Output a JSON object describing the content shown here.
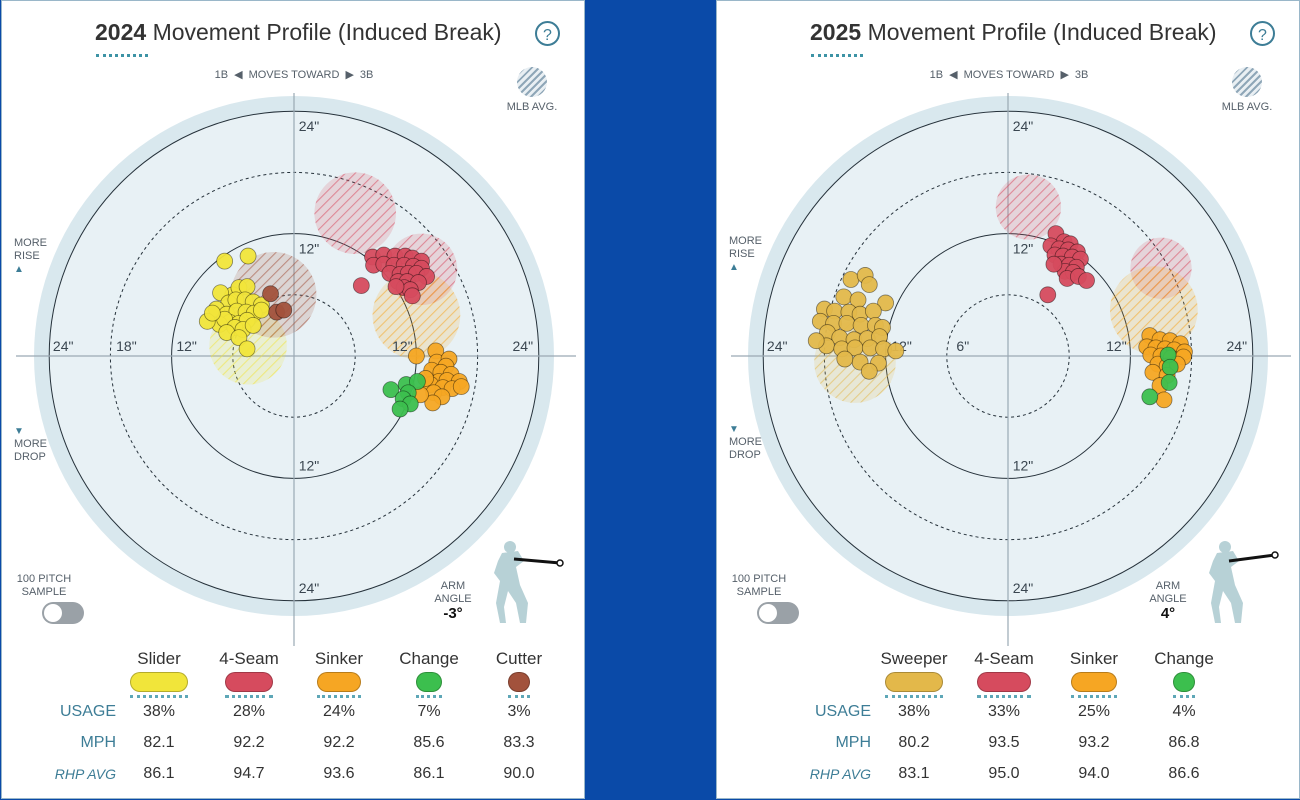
{
  "panels": [
    {
      "year": "2024",
      "title_suffix": "Movement Profile (Induced Break)",
      "help": "?",
      "direction": {
        "left": "1B",
        "middle": "MOVES TOWARD",
        "right": "3B"
      },
      "mlb_avg_label": "MLB AVG.",
      "more_rise": [
        "MORE",
        "RISE"
      ],
      "more_drop": [
        "MORE",
        "DROP"
      ],
      "sample_label": [
        "100 PITCH",
        "SAMPLE"
      ],
      "arm_angle_label": [
        "ARM",
        "ANGLE"
      ],
      "arm_angle_value": "-3°",
      "pitches": [
        "Slider",
        "4-Seam",
        "Sinker",
        "Change",
        "Cutter"
      ],
      "pitch_colors": [
        "#f1e53a",
        "#d64b5e",
        "#f6a623",
        "#3cbf4e",
        "#a2523c"
      ],
      "row_labels": {
        "usage": "USAGE",
        "mph": "MPH",
        "avg": "RHP AVG"
      },
      "usage": [
        "38%",
        "28%",
        "24%",
        "7%",
        "3%"
      ],
      "mph": [
        "82.1",
        "92.2",
        "92.2",
        "85.6",
        "83.3"
      ],
      "rhp_avg": [
        "86.1",
        "94.7",
        "93.6",
        "86.1",
        "90.0"
      ],
      "chart_data": {
        "type": "scatter",
        "title": "2024 Movement Profile (Induced Break)",
        "xlabel": "1B ◀ MOVES TOWARD ▶ 3B",
        "ylabel": "MORE RISE / MORE DROP",
        "ring_labels_left": [
          "24\"",
          "18\"",
          "12\""
        ],
        "ring_labels_right": [
          "12\"",
          "24\""
        ],
        "ring_labels_top": [
          "24\"",
          "12\""
        ],
        "ring_labels_bottom": [
          "12\"",
          "24\""
        ],
        "units": "inches",
        "xlim": [
          -24,
          24
        ],
        "ylim": [
          -24,
          24
        ],
        "mlb_avg": [
          {
            "name": "Slider",
            "x": -4.5,
            "y": 1.0,
            "r": 3.8
          },
          {
            "name": "Cutter",
            "x": -2.0,
            "y": 6.0,
            "r": 4.2
          },
          {
            "name": "4-Seam",
            "x": 6.0,
            "y": 14.0,
            "r": 4.0
          },
          {
            "name": "4-Seam",
            "x": 12.5,
            "y": 8.5,
            "r": 3.5
          },
          {
            "name": "Sinker",
            "x": 12.0,
            "y": 4.0,
            "r": 4.3
          }
        ],
        "series": [
          {
            "name": "Slider",
            "color": "#f1e53a",
            "points": [
              [
                -6.8,
                9.3
              ],
              [
                -4.5,
                9.8
              ],
              [
                -6.0,
                6.0
              ],
              [
                -5.4,
                6.7
              ],
              [
                -4.6,
                6.8
              ],
              [
                -7.2,
                6.2
              ],
              [
                -6.4,
                5.2
              ],
              [
                -5.7,
                5.5
              ],
              [
                -4.8,
                5.5
              ],
              [
                -4.0,
                5.3
              ],
              [
                -3.2,
                5.0
              ],
              [
                -7.6,
                4.6
              ],
              [
                -6.6,
                4.1
              ],
              [
                -5.6,
                4.4
              ],
              [
                -4.7,
                4.3
              ],
              [
                -3.9,
                4.2
              ],
              [
                -3.2,
                4.5
              ],
              [
                -6.3,
                3.3
              ],
              [
                -5.4,
                3.2
              ],
              [
                -4.6,
                3.5
              ],
              [
                -7.3,
                3.1
              ],
              [
                -6.8,
                3.6
              ],
              [
                -5.8,
                2.8
              ],
              [
                -5.0,
                2.6
              ],
              [
                -4.0,
                3.0
              ],
              [
                -6.6,
                2.3
              ],
              [
                -5.4,
                1.8
              ],
              [
                -4.6,
                0.7
              ],
              [
                -8.5,
                3.4
              ],
              [
                -8.0,
                4.2
              ]
            ]
          },
          {
            "name": "4-Seam",
            "color": "#d64b5e",
            "points": [
              [
                7.7,
                9.7
              ],
              [
                8.8,
                9.9
              ],
              [
                9.9,
                9.8
              ],
              [
                10.9,
                9.8
              ],
              [
                11.6,
                9.6
              ],
              [
                12.5,
                9.3
              ],
              [
                7.8,
                8.9
              ],
              [
                8.8,
                9.0
              ],
              [
                9.8,
                8.9
              ],
              [
                10.8,
                8.9
              ],
              [
                11.7,
                8.8
              ],
              [
                12.5,
                8.6
              ],
              [
                9.4,
                8.1
              ],
              [
                10.4,
                8.0
              ],
              [
                11.2,
                8.1
              ],
              [
                12.0,
                8.1
              ],
              [
                13.0,
                7.8
              ],
              [
                10.2,
                7.3
              ],
              [
                11.1,
                7.3
              ],
              [
                12.2,
                7.2
              ],
              [
                10.8,
                6.7
              ],
              [
                11.4,
                6.5
              ],
              [
                10.0,
                6.8
              ],
              [
                11.6,
                5.9
              ],
              [
                6.6,
                6.9
              ]
            ]
          },
          {
            "name": "Sinker",
            "color": "#f6a623",
            "points": [
              [
                13.9,
                0.5
              ],
              [
                12.0,
                0.0
              ],
              [
                14.0,
                -0.6
              ],
              [
                15.2,
                -0.3
              ],
              [
                14.9,
                -1.0
              ],
              [
                13.5,
                -1.4
              ],
              [
                14.4,
                -1.6
              ],
              [
                15.4,
                -1.8
              ],
              [
                14.2,
                -2.5
              ],
              [
                15.0,
                -2.4
              ],
              [
                16.2,
                -2.5
              ],
              [
                13.4,
                -2.8
              ],
              [
                14.6,
                -3.1
              ],
              [
                15.5,
                -3.2
              ],
              [
                16.4,
                -3.0
              ],
              [
                13.7,
                -3.6
              ],
              [
                14.5,
                -4.0
              ],
              [
                13.6,
                -4.6
              ],
              [
                12.4,
                -3.8
              ],
              [
                12.9,
                -2.2
              ]
            ]
          },
          {
            "name": "Change",
            "color": "#3cbf4e",
            "points": [
              [
                9.5,
                -3.3
              ],
              [
                11.0,
                -2.8
              ],
              [
                12.1,
                -2.5
              ],
              [
                11.2,
                -3.6
              ],
              [
                10.7,
                -4.2
              ],
              [
                11.4,
                -4.7
              ],
              [
                10.4,
                -5.2
              ]
            ]
          },
          {
            "name": "Cutter",
            "color": "#a2523c",
            "points": [
              [
                -2.3,
                6.1
              ],
              [
                -1.7,
                4.3
              ],
              [
                -1.0,
                4.5
              ]
            ]
          }
        ]
      }
    },
    {
      "year": "2025",
      "title_suffix": "Movement Profile (Induced Break)",
      "help": "?",
      "direction": {
        "left": "1B",
        "middle": "MOVES TOWARD",
        "right": "3B"
      },
      "mlb_avg_label": "MLB AVG.",
      "more_rise": [
        "MORE",
        "RISE"
      ],
      "more_drop": [
        "MORE",
        "DROP"
      ],
      "sample_label": [
        "100 PITCH",
        "SAMPLE"
      ],
      "arm_angle_label": [
        "ARM",
        "ANGLE"
      ],
      "arm_angle_value": "4°",
      "pitches": [
        "Sweeper",
        "4-Seam",
        "Sinker",
        "Change"
      ],
      "pitch_colors": [
        "#e3b84a",
        "#d64b5e",
        "#f6a623",
        "#3cbf4e"
      ],
      "row_labels": {
        "usage": "USAGE",
        "mph": "MPH",
        "avg": "RHP AVG"
      },
      "usage": [
        "38%",
        "33%",
        "25%",
        "4%"
      ],
      "mph": [
        "80.2",
        "93.5",
        "93.2",
        "86.8"
      ],
      "rhp_avg": [
        "83.1",
        "95.0",
        "94.0",
        "86.6"
      ],
      "chart_data": {
        "type": "scatter",
        "title": "2025 Movement Profile (Induced Break)",
        "xlabel": "1B ◀ MOVES TOWARD ▶ 3B",
        "ylabel": "MORE RISE / MORE DROP",
        "ring_labels_left": [
          "24\"",
          "12\"",
          "6\""
        ],
        "ring_labels_right": [
          "12\"",
          "24\""
        ],
        "ring_labels_top": [
          "24\"",
          "12\""
        ],
        "ring_labels_bottom": [
          "12\"",
          "24\""
        ],
        "units": "inches",
        "xlim": [
          -24,
          24
        ],
        "ylim": [
          -24,
          24
        ],
        "mlb_avg": [
          {
            "name": "Sweeper",
            "x": -15.0,
            "y": -0.6,
            "r": 4.0
          },
          {
            "name": "4-Seam",
            "x": 2.0,
            "y": 14.6,
            "r": 3.2
          },
          {
            "name": "4-Seam",
            "x": 15.0,
            "y": 8.6,
            "r": 3.0
          },
          {
            "name": "Sinker",
            "x": 14.3,
            "y": 4.5,
            "r": 4.3
          }
        ],
        "series": [
          {
            "name": "Sweeper",
            "color": "#e3b84a",
            "points": [
              [
                -15.4,
                7.5
              ],
              [
                -14.0,
                7.9
              ],
              [
                -13.6,
                7.0
              ],
              [
                -16.1,
                5.8
              ],
              [
                -14.7,
                5.5
              ],
              [
                -12.0,
                5.2
              ],
              [
                -18.0,
                4.6
              ],
              [
                -17.0,
                4.4
              ],
              [
                -15.6,
                4.3
              ],
              [
                -14.5,
                4.1
              ],
              [
                -13.2,
                4.4
              ],
              [
                -18.4,
                3.4
              ],
              [
                -17.1,
                3.2
              ],
              [
                -15.8,
                3.2
              ],
              [
                -14.4,
                3.0
              ],
              [
                -13.0,
                3.0
              ],
              [
                -12.3,
                2.8
              ],
              [
                -17.7,
                2.3
              ],
              [
                -16.5,
                1.8
              ],
              [
                -15.1,
                1.6
              ],
              [
                -13.8,
                1.7
              ],
              [
                -12.6,
                1.9
              ],
              [
                -17.8,
                1.0
              ],
              [
                -16.3,
                0.7
              ],
              [
                -15.0,
                0.8
              ],
              [
                -13.5,
                0.8
              ],
              [
                -12.2,
                0.7
              ],
              [
                -11.0,
                0.5
              ],
              [
                -14.5,
                -0.6
              ],
              [
                -12.7,
                -0.7
              ],
              [
                -16.0,
                -0.3
              ],
              [
                -13.6,
                -1.5
              ],
              [
                -18.8,
                1.5
              ]
            ]
          },
          {
            "name": "4-Seam",
            "color": "#d64b5e",
            "points": [
              [
                4.7,
                12.0
              ],
              [
                5.5,
                11.2
              ],
              [
                6.1,
                11.0
              ],
              [
                4.2,
                10.8
              ],
              [
                5.0,
                10.5
              ],
              [
                5.9,
                10.4
              ],
              [
                6.8,
                10.2
              ],
              [
                4.6,
                9.9
              ],
              [
                5.4,
                9.8
              ],
              [
                6.3,
                9.7
              ],
              [
                7.1,
                9.5
              ],
              [
                5.2,
                9.0
              ],
              [
                6.0,
                8.9
              ],
              [
                6.7,
                8.7
              ],
              [
                5.6,
                8.3
              ],
              [
                6.4,
                8.2
              ],
              [
                5.8,
                7.6
              ],
              [
                6.9,
                7.8
              ],
              [
                7.7,
                7.4
              ],
              [
                3.9,
                6.0
              ],
              [
                4.5,
                9.0
              ]
            ]
          },
          {
            "name": "Sinker",
            "color": "#f6a623",
            "points": [
              [
                13.9,
                2.0
              ],
              [
                14.9,
                1.6
              ],
              [
                15.9,
                1.5
              ],
              [
                16.9,
                1.2
              ],
              [
                13.6,
                0.9
              ],
              [
                14.5,
                0.8
              ],
              [
                15.4,
                0.7
              ],
              [
                16.3,
                0.6
              ],
              [
                17.3,
                0.4
              ],
              [
                14.0,
                0.1
              ],
              [
                15.0,
                0.0
              ],
              [
                16.0,
                -0.2
              ],
              [
                17.2,
                -0.1
              ],
              [
                14.7,
                -0.8
              ],
              [
                15.6,
                -1.0
              ],
              [
                16.6,
                -0.8
              ],
              [
                14.2,
                -1.6
              ],
              [
                15.6,
                -1.9
              ],
              [
                14.9,
                -2.9
              ],
              [
                15.3,
                -4.3
              ]
            ]
          },
          {
            "name": "Change",
            "color": "#3cbf4e",
            "points": [
              [
                15.7,
                0.1
              ],
              [
                15.9,
                -1.1
              ],
              [
                15.8,
                -2.6
              ],
              [
                13.9,
                -4.0
              ]
            ]
          }
        ]
      }
    }
  ]
}
